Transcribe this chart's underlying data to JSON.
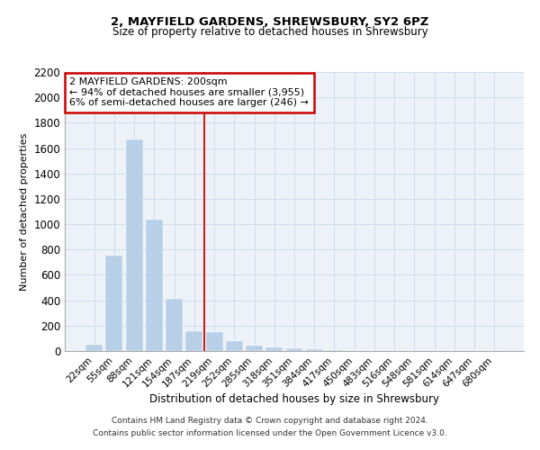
{
  "title1": "2, MAYFIELD GARDENS, SHREWSBURY, SY2 6PZ",
  "title2": "Size of property relative to detached houses in Shrewsbury",
  "xlabel": "Distribution of detached houses by size in Shrewsbury",
  "ylabel": "Number of detached properties",
  "categories": [
    "22sqm",
    "55sqm",
    "88sqm",
    "121sqm",
    "154sqm",
    "187sqm",
    "219sqm",
    "252sqm",
    "285sqm",
    "318sqm",
    "351sqm",
    "384sqm",
    "417sqm",
    "450sqm",
    "483sqm",
    "516sqm",
    "548sqm",
    "581sqm",
    "614sqm",
    "647sqm",
    "680sqm"
  ],
  "values": [
    50,
    750,
    1670,
    1035,
    410,
    155,
    150,
    80,
    45,
    30,
    20,
    15,
    5,
    0,
    0,
    0,
    0,
    0,
    0,
    0,
    0
  ],
  "bar_color": "#b8cfe8",
  "bar_edge_color": "#b8cfe8",
  "grid_color": "#c8d8ea",
  "bg_color": "#edf2f8",
  "red_line_x": 5.5,
  "annotation_text": "2 MAYFIELD GARDENS: 200sqm\n← 94% of detached houses are smaller (3,955)\n6% of semi-detached houses are larger (246) →",
  "annotation_box_color": "#ffffff",
  "annotation_box_edge": "#cc0000",
  "ylim": [
    0,
    2200
  ],
  "yticks": [
    0,
    200,
    400,
    600,
    800,
    1000,
    1200,
    1400,
    1600,
    1800,
    2000,
    2200
  ],
  "footer1": "Contains HM Land Registry data © Crown copyright and database right 2024.",
  "footer2": "Contains public sector information licensed under the Open Government Licence v3.0."
}
